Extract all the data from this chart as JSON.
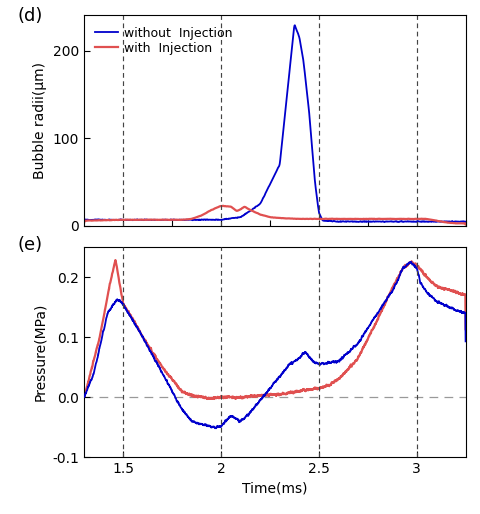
{
  "title_d": "(d)",
  "title_e": "(e)",
  "xlabel": "Time(ms)",
  "ylabel_d": "Bubble radii(μm)",
  "ylabel_e": "Pressure(MPa)",
  "blue_label": "without  Injection",
  "red_label": "with  Injection",
  "vlines": [
    1.5,
    2.0,
    2.5,
    3.0
  ],
  "xlim": [
    1.3,
    3.25
  ],
  "ylim_d": [
    0,
    240
  ],
  "ylim_e": [
    -0.1,
    0.25
  ],
  "yticks_d": [
    0,
    100,
    200
  ],
  "yticks_e": [
    -0.1,
    0.0,
    0.1,
    0.2
  ],
  "blue_color": "#0000cc",
  "red_color": "#e05050",
  "dashed_zero_color": "#999999",
  "vline_color": "#444444"
}
